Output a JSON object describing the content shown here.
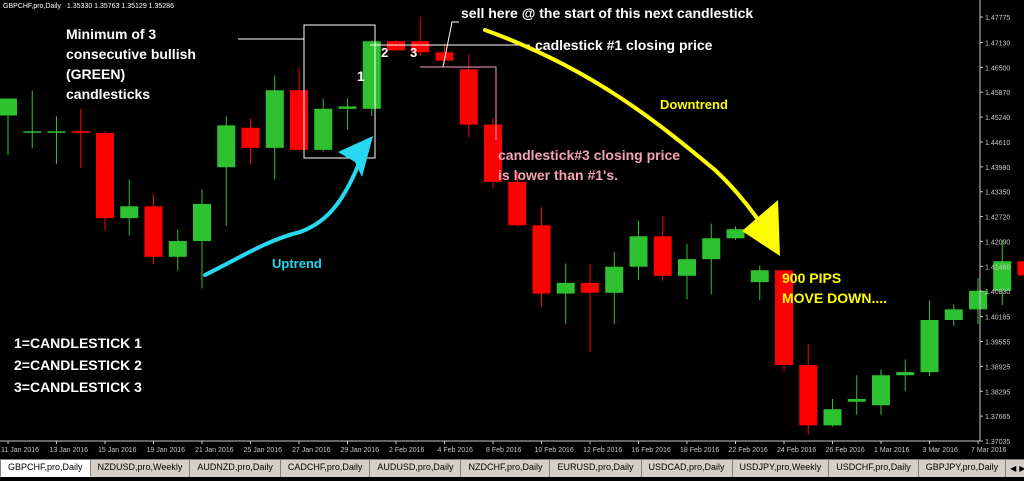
{
  "window": {
    "info_title": "GBPCHF,pro,Daily",
    "info_values": "1.35330 1.35763 1.35129 1.35286"
  },
  "chart_data": {
    "type": "candlestick",
    "price_axis": [
      "1.47775",
      "1.47130",
      "1.46500",
      "1.45870",
      "1.45240",
      "1.44610",
      "1.43980",
      "1.43350",
      "1.42720",
      "1.42090",
      "1.41460",
      "1.40830",
      "1.40185",
      "1.39555",
      "1.38925",
      "1.38295",
      "1.37665",
      "1.37035"
    ],
    "price_range": [
      1.37035,
      1.47775
    ],
    "date_axis": [
      "11 Jan 2016",
      "13 Jan 2016",
      "15 Jan 2016",
      "19 Jan 2016",
      "21 Jan 2016",
      "25 Jan 2016",
      "27 Jan 2016",
      "29 Jan 2016",
      "2 Feb 2016",
      "4 Feb 2016",
      "8 Feb 2016",
      "10 Feb 2016",
      "12 Feb 2016",
      "16 Feb 2016",
      "18 Feb 2016",
      "22 Feb 2016",
      "24 Feb 2016",
      "26 Feb 2016",
      "1 Mar 2016",
      "3 Mar 2016",
      "7 Mar 2016"
    ],
    "candles": [
      {
        "o": 1.4528,
        "h": 1.4566,
        "l": 1.4428,
        "c": 1.4571
      },
      {
        "o": 1.4488,
        "h": 1.4591,
        "l": 1.4445,
        "c": 1.4488
      },
      {
        "o": 1.4488,
        "h": 1.4526,
        "l": 1.4405,
        "c": 1.4488
      },
      {
        "o": 1.4488,
        "h": 1.4545,
        "l": 1.4395,
        "c": 1.4484
      },
      {
        "o": 1.4484,
        "h": 1.4488,
        "l": 1.4237,
        "c": 1.4268
      },
      {
        "o": 1.4268,
        "h": 1.4366,
        "l": 1.4224,
        "c": 1.4298
      },
      {
        "o": 1.4298,
        "h": 1.4328,
        "l": 1.4151,
        "c": 1.417
      },
      {
        "o": 1.417,
        "h": 1.4239,
        "l": 1.4135,
        "c": 1.421
      },
      {
        "o": 1.421,
        "h": 1.4341,
        "l": 1.409,
        "c": 1.4304
      },
      {
        "o": 1.4397,
        "h": 1.4526,
        "l": 1.4248,
        "c": 1.4503
      },
      {
        "o": 1.4497,
        "h": 1.452,
        "l": 1.4405,
        "c": 1.4446
      },
      {
        "o": 1.4446,
        "h": 1.463,
        "l": 1.4366,
        "c": 1.4592
      },
      {
        "o": 1.4592,
        "h": 1.4649,
        "l": 1.4441,
        "c": 1.4441
      },
      {
        "o": 1.4441,
        "h": 1.4571,
        "l": 1.4437,
        "c": 1.4545
      },
      {
        "o": 1.4545,
        "h": 1.4571,
        "l": 1.4493,
        "c": 1.4551
      },
      {
        "o": 1.4545,
        "h": 1.4718,
        "l": 1.4527,
        "c": 1.4716
      },
      {
        "o": 1.4716,
        "h": 1.472,
        "l": 1.4693,
        "c": 1.4693
      },
      {
        "o": 1.4716,
        "h": 1.4777,
        "l": 1.4678,
        "c": 1.4688
      },
      {
        "o": 1.4688,
        "h": 1.4711,
        "l": 1.466,
        "c": 1.4667
      },
      {
        "o": 1.4645,
        "h": 1.4683,
        "l": 1.4473,
        "c": 1.4505
      },
      {
        "o": 1.4505,
        "h": 1.4522,
        "l": 1.4344,
        "c": 1.436
      },
      {
        "o": 1.436,
        "h": 1.4385,
        "l": 1.4246,
        "c": 1.425
      },
      {
        "o": 1.425,
        "h": 1.4296,
        "l": 1.4043,
        "c": 1.4077
      },
      {
        "o": 1.4077,
        "h": 1.4153,
        "l": 1.4,
        "c": 1.4104
      },
      {
        "o": 1.4104,
        "h": 1.4152,
        "l": 1.3929,
        "c": 1.4079
      },
      {
        "o": 1.4079,
        "h": 1.4183,
        "l": 1.4,
        "c": 1.4145
      },
      {
        "o": 1.4145,
        "h": 1.4261,
        "l": 1.4112,
        "c": 1.4222
      },
      {
        "o": 1.4222,
        "h": 1.4272,
        "l": 1.411,
        "c": 1.4122
      },
      {
        "o": 1.4122,
        "h": 1.4202,
        "l": 1.4062,
        "c": 1.4164
      },
      {
        "o": 1.4164,
        "h": 1.4254,
        "l": 1.4075,
        "c": 1.4217
      },
      {
        "o": 1.4217,
        "h": 1.4247,
        "l": 1.4213,
        "c": 1.424
      },
      {
        "o": 1.4106,
        "h": 1.4148,
        "l": 1.406,
        "c": 1.4136
      },
      {
        "o": 1.4136,
        "h": 1.4136,
        "l": 1.388,
        "c": 1.3896
      },
      {
        "o": 1.3896,
        "h": 1.395,
        "l": 1.3719,
        "c": 1.3743
      },
      {
        "o": 1.3743,
        "h": 1.381,
        "l": 1.374,
        "c": 1.3784
      },
      {
        "o": 1.3803,
        "h": 1.387,
        "l": 1.377,
        "c": 1.381
      },
      {
        "o": 1.3794,
        "h": 1.3885,
        "l": 1.377,
        "c": 1.387
      },
      {
        "o": 1.387,
        "h": 1.391,
        "l": 1.383,
        "c": 1.3878
      },
      {
        "o": 1.3878,
        "h": 1.406,
        "l": 1.3868,
        "c": 1.401
      },
      {
        "o": 1.401,
        "h": 1.405,
        "l": 1.3995,
        "c": 1.4037
      },
      {
        "o": 1.4037,
        "h": 1.4116,
        "l": 1.4,
        "c": 1.4084
      },
      {
        "o": 1.4084,
        "h": 1.4213,
        "l": 1.4048,
        "c": 1.4159
      },
      {
        "o": 1.4159,
        "h": 1.4185,
        "l": 1.41,
        "c": 1.4123
      }
    ]
  },
  "annotations": {
    "min_bullish_text": [
      "Minimum of 3",
      "consecutive bullish",
      "(GREEN)",
      "candlesticks"
    ],
    "sell_here": "sell here @ the start of this next candlestick",
    "c1_closing": "cadlestick #1 closing price",
    "c3_closing": [
      "candlestick#3 closing price",
      "is lower than #1's."
    ],
    "downtrend": "Downtrend",
    "uptrend": "Uptrend",
    "pips": [
      "900 PIPS",
      "MOVE DOWN...."
    ],
    "legend": [
      "1=CANDLESTICK 1",
      "2=CANDLESTICK 2",
      "3=CANDLESTICK 3"
    ],
    "num1": "1",
    "num2": "2",
    "num3": "3"
  },
  "colors": {
    "bull": "#2fc230",
    "bear": "#ff0000",
    "uptrend": "#26d8f0",
    "downtrend": "#ffff00",
    "pink": "#f4a3b4",
    "axis": "#c8c8c8"
  },
  "tabs": [
    {
      "label": "GBPCHF,pro,Daily",
      "active": true
    },
    {
      "label": "NZDUSD,pro,Weekly",
      "active": false
    },
    {
      "label": "AUDNZD,pro,Daily",
      "active": false
    },
    {
      "label": "CADCHF,pro,Daily",
      "active": false
    },
    {
      "label": "AUDUSD,pro,Daily",
      "active": false
    },
    {
      "label": "NZDCHF,pro,Daily",
      "active": false
    },
    {
      "label": "EURUSD,pro,Daily",
      "active": false
    },
    {
      "label": "USDCAD,pro,Daily",
      "active": false
    },
    {
      "label": "USDJPY,pro,Weekly",
      "active": false
    },
    {
      "label": "USDCHF,pro,Daily",
      "active": false
    },
    {
      "label": "GBPJPY,pro,Daily",
      "active": false
    }
  ]
}
